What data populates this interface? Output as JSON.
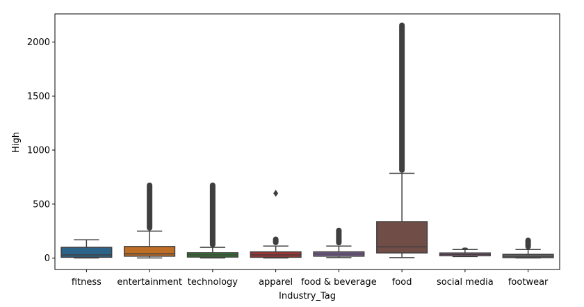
{
  "chart_data": {
    "type": "box",
    "xlabel": "Industry_Tag",
    "ylabel": "High",
    "ylim": [
      -105,
      2260
    ],
    "yticks": [
      0,
      500,
      1000,
      1500,
      2000
    ],
    "yticklabels": [
      "0",
      "500",
      "1000",
      "1500",
      "2000"
    ],
    "grid": false,
    "categories": [
      "fitness",
      "entertainment",
      "technology",
      "apparel",
      "food & beverage",
      "food",
      "social media",
      "footwear"
    ],
    "boxes": [
      {
        "category": "fitness",
        "color": "#3274a1",
        "whisker_low": 2,
        "q1": 8,
        "median": 30,
        "q3": 100,
        "whisker_high": 170,
        "outlier_ranges": [],
        "outliers": []
      },
      {
        "category": "entertainment",
        "color": "#e1812c",
        "whisker_low": 2,
        "q1": 18,
        "median": 40,
        "q3": 108,
        "whisker_high": 250,
        "outlier_ranges": [
          [
            255,
            700
          ]
        ],
        "outliers": []
      },
      {
        "category": "technology",
        "color": "#3a923a",
        "whisker_low": 2,
        "q1": 10,
        "median": 30,
        "q3": 50,
        "whisker_high": 100,
        "outlier_ranges": [
          [
            100,
            700
          ]
        ],
        "outliers": []
      },
      {
        "category": "apparel",
        "color": "#c03d3e",
        "whisker_low": 2,
        "q1": 8,
        "median": 30,
        "q3": 58,
        "whisker_high": 112,
        "outlier_ranges": [
          [
            120,
            200
          ]
        ],
        "outliers": [
          600
        ]
      },
      {
        "category": "food & beverage",
        "color": "#9372b2",
        "whisker_low": 5,
        "q1": 18,
        "median": 38,
        "q3": 58,
        "whisker_high": 112,
        "outlier_ranges": [
          [
            118,
            282
          ]
        ],
        "outliers": []
      },
      {
        "category": "food",
        "color": "#845b53",
        "whisker_low": 5,
        "q1": 48,
        "median": 105,
        "q3": 338,
        "whisker_high": 785,
        "outlier_ranges": [
          [
            790,
            2180
          ]
        ],
        "outliers": []
      },
      {
        "category": "social media",
        "color": "#d684bd",
        "whisker_low": 15,
        "q1": 22,
        "median": 35,
        "q3": 48,
        "whisker_high": 80,
        "outlier_ranges": [
          [
            82,
            98
          ]
        ],
        "outliers": []
      },
      {
        "category": "footwear",
        "color": "#7f7f7f",
        "whisker_low": 2,
        "q1": 5,
        "median": 18,
        "q3": 35,
        "whisker_high": 80,
        "outlier_ranges": [
          [
            82,
            190
          ]
        ],
        "outliers": []
      }
    ]
  }
}
